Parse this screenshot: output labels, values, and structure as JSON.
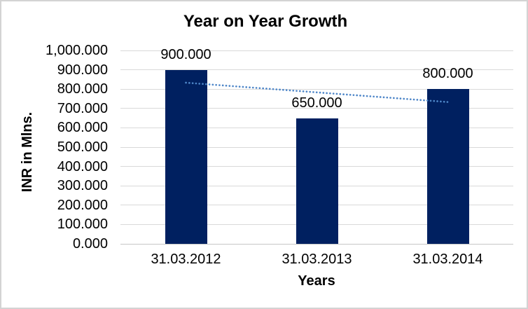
{
  "chart_data": {
    "type": "bar",
    "title": "Year on Year Growth",
    "xlabel": "Years",
    "ylabel": "INR in Mlns.",
    "categories": [
      "31.03.2012",
      "31.03.2013",
      "31.03.2014"
    ],
    "values": [
      900,
      650,
      800
    ],
    "data_labels": [
      "900.000",
      "650.000",
      "800.000"
    ],
    "ylim": [
      0,
      1000
    ],
    "ytick_step": 100,
    "ytick_labels": [
      "0.000",
      "100.000",
      "200.000",
      "300.000",
      "400.000",
      "500.000",
      "600.000",
      "700.000",
      "800.000",
      "900.000",
      "1,000.000"
    ],
    "grid": "horizontal",
    "legend": "none",
    "trendline": {
      "type": "linear",
      "y_at_first_bar": 833.3,
      "y_at_last_bar": 733.3,
      "style": "dotted"
    },
    "colors": {
      "bar": "#002060",
      "trendline": "#4E86C8",
      "gridline": "#D9D9D9",
      "baseline": "#C6C6C6",
      "text": "#000000",
      "border": "#D3D3D3"
    }
  }
}
